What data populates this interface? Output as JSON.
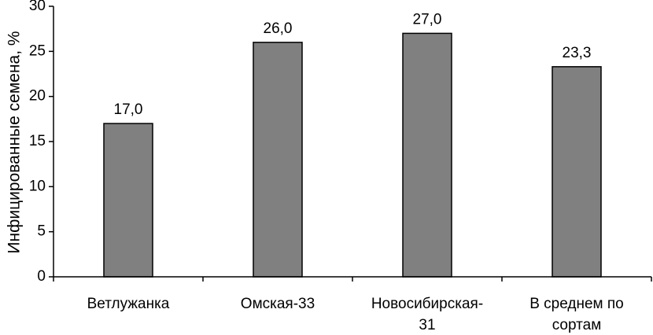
{
  "chart_data": {
    "type": "bar",
    "title": "",
    "xlabel": "",
    "ylabel": "Инфицированные семена, %",
    "categories": [
      [
        "Ветлужанка"
      ],
      [
        "Омская-33"
      ],
      [
        "Новосибирская-",
        "31"
      ],
      [
        "В среднем по",
        "сортам"
      ]
    ],
    "values": [
      17.0,
      26.0,
      27.0,
      23.3
    ],
    "value_labels": [
      "17,0",
      "26,0",
      "27,0",
      "23,3"
    ],
    "ylim": [
      0,
      30
    ],
    "yticks": [
      0,
      5,
      10,
      15,
      20,
      25,
      30
    ],
    "ytick_labels": [
      "0",
      "5",
      "10",
      "15",
      "20",
      "25",
      "30"
    ],
    "grid": false,
    "legend": "none",
    "colors": {
      "bar_fill": "#808080",
      "bar_stroke": "#000000",
      "axis": "#000000",
      "text": "#000000"
    }
  }
}
